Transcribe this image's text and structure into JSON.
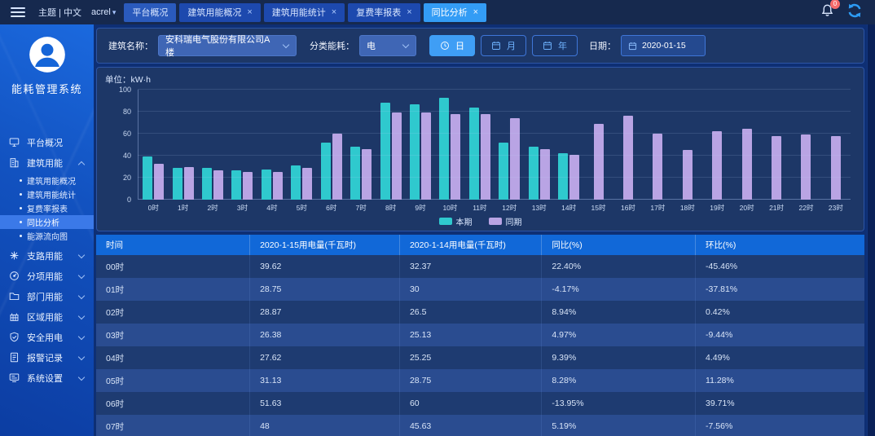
{
  "colors": {
    "accent": "#339cf5",
    "series_current": "#2fc9ce",
    "series_previous": "#b9a4e4",
    "table_header": "#1168d8",
    "badge": "#f56c6c"
  },
  "topbar": {
    "theme_label": "主题 | 中文",
    "user": "acrel",
    "notification_badge": "0",
    "tabs": [
      {
        "key": "platform-overview",
        "label": "平台概况",
        "closable": false,
        "active": false
      },
      {
        "key": "building-energy-overview",
        "label": "建筑用能概况",
        "closable": true,
        "active": false
      },
      {
        "key": "building-energy-stats",
        "label": "建筑用能统计",
        "closable": true,
        "active": false
      },
      {
        "key": "tariff-report",
        "label": "复费率报表",
        "closable": true,
        "active": false
      },
      {
        "key": "yoy-analysis",
        "label": "同比分析",
        "closable": true,
        "active": true
      }
    ]
  },
  "sidebar": {
    "system_title": "能耗管理系统",
    "menu": [
      {
        "key": "platform-overview",
        "label": "平台概况",
        "icon": "monitor-icon",
        "expandable": false
      },
      {
        "key": "building-energy",
        "label": "建筑用能",
        "icon": "building-icon",
        "expandable": true,
        "expanded": true,
        "children": [
          {
            "key": "building-energy-overview",
            "label": "建筑用能概况",
            "active": false
          },
          {
            "key": "building-energy-stats",
            "label": "建筑用能统计",
            "active": false
          },
          {
            "key": "tariff-report",
            "label": "复费率报表",
            "active": false
          },
          {
            "key": "yoy-analysis",
            "label": "同比分析",
            "active": true
          },
          {
            "key": "energy-flow",
            "label": "能源流向图",
            "active": false
          }
        ]
      },
      {
        "key": "branch-energy",
        "label": "支路用能",
        "icon": "branch-icon",
        "expandable": true
      },
      {
        "key": "category-energy",
        "label": "分项用能",
        "icon": "gauge-icon",
        "expandable": true
      },
      {
        "key": "department-energy",
        "label": "部门用能",
        "icon": "folder-icon",
        "expandable": true
      },
      {
        "key": "region-energy",
        "label": "区域用能",
        "icon": "region-icon",
        "expandable": true
      },
      {
        "key": "electrical-safety",
        "label": "安全用电",
        "icon": "shield-icon",
        "expandable": true
      },
      {
        "key": "alarm-records",
        "label": "报警记录",
        "icon": "alarm-doc-icon",
        "expandable": true
      },
      {
        "key": "system-settings",
        "label": "系统设置",
        "icon": "settings-icon",
        "expandable": true
      }
    ]
  },
  "filters": {
    "building_label": "建筑名称：",
    "building_value": "安科瑞电气股份有限公司A楼",
    "energy_label": "分类能耗：",
    "energy_value": "电",
    "period_buttons": [
      {
        "key": "day",
        "label": "日",
        "icon": "clock-icon",
        "active": true
      },
      {
        "key": "month",
        "label": "月",
        "icon": "calendar-icon",
        "active": false
      },
      {
        "key": "year",
        "label": "年",
        "icon": "calendar-icon",
        "active": false
      }
    ],
    "date_label": "日期：",
    "date_value": "2020-01-15"
  },
  "chart_data": {
    "type": "bar",
    "title": "单位：kW·h",
    "ylabel": "kW·h",
    "ylim": [
      0,
      100
    ],
    "yticks": [
      0,
      20,
      40,
      60,
      80,
      100
    ],
    "grid": true,
    "legend_position": "bottom",
    "categories": [
      "0时",
      "1时",
      "2时",
      "3时",
      "4时",
      "5时",
      "6时",
      "7时",
      "8时",
      "9时",
      "10时",
      "11时",
      "12时",
      "13时",
      "14时",
      "15时",
      "16时",
      "17时",
      "18时",
      "19时",
      "20时",
      "21时",
      "22时",
      "23时"
    ],
    "series": [
      {
        "name": "本期",
        "color": "#2fc9ce",
        "values": [
          39.62,
          28.75,
          28.87,
          26.38,
          27.62,
          31.13,
          51.63,
          48,
          88.5,
          86.5,
          92.5,
          84,
          51.5,
          48,
          42.5,
          null,
          null,
          null,
          null,
          null,
          null,
          null,
          null,
          null
        ]
      },
      {
        "name": "同期",
        "color": "#b9a4e4",
        "values": [
          32.37,
          30,
          26.5,
          25.13,
          25.25,
          28.75,
          60,
          45.63,
          79.5,
          79,
          78,
          78,
          74,
          46,
          40.5,
          69,
          76,
          60,
          45.5,
          62,
          64.5,
          57.5,
          59.5,
          57.5
        ]
      }
    ]
  },
  "table": {
    "columns": [
      "时间",
      "2020-1-15用电量(千瓦时)",
      "2020-1-14用电量(千瓦时)",
      "同比(%)",
      "环比(%)"
    ],
    "rows": [
      [
        "00时",
        "39.62",
        "32.37",
        "22.40%",
        "-45.46%"
      ],
      [
        "01时",
        "28.75",
        "30",
        "-4.17%",
        "-37.81%"
      ],
      [
        "02时",
        "28.87",
        "26.5",
        "8.94%",
        "0.42%"
      ],
      [
        "03时",
        "26.38",
        "25.13",
        "4.97%",
        "-9.44%"
      ],
      [
        "04时",
        "27.62",
        "25.25",
        "9.39%",
        "4.49%"
      ],
      [
        "05时",
        "31.13",
        "28.75",
        "8.28%",
        "11.28%"
      ],
      [
        "06时",
        "51.63",
        "60",
        "-13.95%",
        "39.71%"
      ],
      [
        "07时",
        "48",
        "45.63",
        "5.19%",
        "-7.56%"
      ]
    ]
  }
}
